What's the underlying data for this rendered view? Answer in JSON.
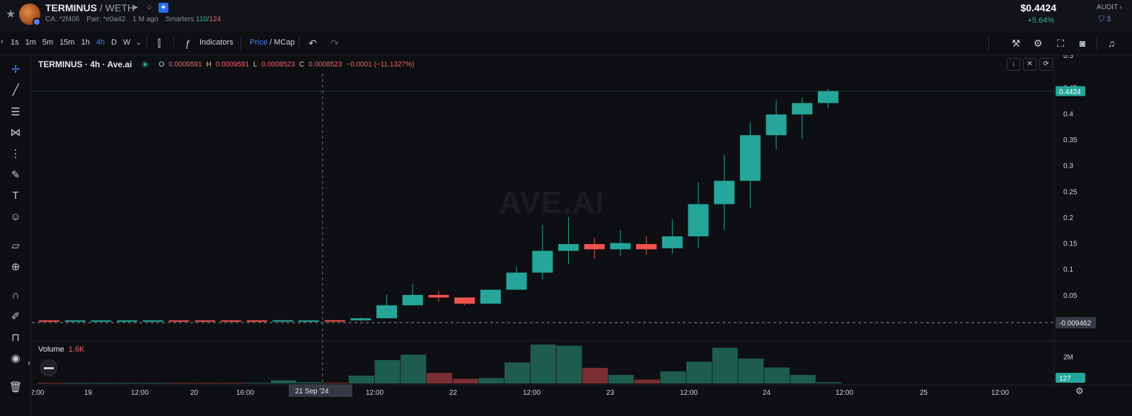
{
  "header": {
    "token_name": "TERMINUS",
    "pair_suffix": " / WETH",
    "ca": "CA: *2f406",
    "pair": "Pair: *e0a42",
    "age": "1 M ago",
    "smarters_label": "Smarters",
    "smarters_good": "110",
    "smarters_total": "124",
    "price": "$0.4424",
    "change": "+5.64%",
    "audit_label": "AUDIT",
    "audit_count": "3"
  },
  "toolbar": {
    "intervals": [
      "1s",
      "1m",
      "5m",
      "15m",
      "1h",
      "4h",
      "D",
      "W"
    ],
    "active_interval": "4h",
    "indicators": "Indicators",
    "price_label": "Price",
    "mcap_label": "MCap"
  },
  "legend": {
    "title": "TERMINUS · 4h · Ave.ai",
    "o_key": "O",
    "o": "0.0009591",
    "h_key": "H",
    "h": "0.0009591",
    "l_key": "L",
    "l": "0.0008523",
    "c_key": "C",
    "c": "0.0008523",
    "chg": "−0.0001 (−11.1327%)"
  },
  "watermark": "AVE.AI",
  "volume": {
    "label": "Volume",
    "value": "1.6K",
    "axis_label": "2M",
    "last_tag": "127"
  },
  "crosshair_date": "21 Sep '24",
  "last_price_tag": "0.4424",
  "cursor_price_tag": "-0.009462",
  "y_top_partial": "0.5",
  "chart_data": {
    "type": "candlestick",
    "y_ticks": [
      0.45,
      0.4,
      0.35,
      0.3,
      0.25,
      0.2,
      0.15,
      0.1,
      0.05
    ],
    "x_ticks": [
      "2:00",
      "19",
      "12:00",
      "20",
      "16:00",
      "04:00",
      "12:00",
      "22",
      "12:00",
      "23",
      "12:00",
      "24",
      "12:00",
      "25",
      "12:00"
    ],
    "ylim": [
      -0.012,
      0.5
    ],
    "candles": [
      {
        "o": 0.0009,
        "h": 0.001,
        "l": 0.0008,
        "c": 0.0008
      },
      {
        "o": 0.0009,
        "h": 0.001,
        "l": 0.0009,
        "c": 0.001
      },
      {
        "o": 0.0009,
        "h": 0.001,
        "l": 0.0009,
        "c": 0.001
      },
      {
        "o": 0.0009,
        "h": 0.001,
        "l": 0.0009,
        "c": 0.001
      },
      {
        "o": 0.0009,
        "h": 0.001,
        "l": 0.0009,
        "c": 0.001
      },
      {
        "o": 0.001,
        "h": 0.001,
        "l": 0.0009,
        "c": 0.0009
      },
      {
        "o": 0.001,
        "h": 0.001,
        "l": 0.0009,
        "c": 0.0009
      },
      {
        "o": 0.001,
        "h": 0.001,
        "l": 0.0009,
        "c": 0.0009
      },
      {
        "o": 0.0009,
        "h": 0.001,
        "l": 0.0008,
        "c": 0.0008
      },
      {
        "o": 0.0009,
        "h": 0.0015,
        "l": 0.0008,
        "c": 0.0012
      },
      {
        "o": 0.0009,
        "h": 0.0012,
        "l": 0.0008,
        "c": 0.0009
      },
      {
        "o": 0.0012,
        "h": 0.0012,
        "l": 0.0008,
        "c": 0.0009
      },
      {
        "o": 0.001,
        "h": 0.006,
        "l": 0.0,
        "c": 0.005
      },
      {
        "o": 0.005,
        "h": 0.05,
        "l": 0.005,
        "c": 0.03
      },
      {
        "o": 0.03,
        "h": 0.072,
        "l": 0.03,
        "c": 0.05
      },
      {
        "o": 0.05,
        "h": 0.058,
        "l": 0.037,
        "c": 0.045
      },
      {
        "o": 0.045,
        "h": 0.045,
        "l": 0.03,
        "c": 0.033
      },
      {
        "o": 0.033,
        "h": 0.06,
        "l": 0.033,
        "c": 0.06
      },
      {
        "o": 0.06,
        "h": 0.105,
        "l": 0.06,
        "c": 0.093
      },
      {
        "o": 0.093,
        "h": 0.185,
        "l": 0.08,
        "c": 0.135
      },
      {
        "o": 0.135,
        "h": 0.2,
        "l": 0.11,
        "c": 0.148
      },
      {
        "o": 0.148,
        "h": 0.16,
        "l": 0.12,
        "c": 0.138
      },
      {
        "o": 0.138,
        "h": 0.175,
        "l": 0.125,
        "c": 0.15
      },
      {
        "o": 0.148,
        "h": 0.163,
        "l": 0.128,
        "c": 0.138
      },
      {
        "o": 0.14,
        "h": 0.196,
        "l": 0.13,
        "c": 0.163
      },
      {
        "o": 0.163,
        "h": 0.267,
        "l": 0.14,
        "c": 0.225
      },
      {
        "o": 0.225,
        "h": 0.32,
        "l": 0.175,
        "c": 0.27
      },
      {
        "o": 0.27,
        "h": 0.383,
        "l": 0.218,
        "c": 0.358
      },
      {
        "o": 0.358,
        "h": 0.425,
        "l": 0.33,
        "c": 0.398
      },
      {
        "o": 0.398,
        "h": 0.43,
        "l": 0.35,
        "c": 0.42
      },
      {
        "o": 0.42,
        "h": 0.447,
        "l": 0.41,
        "c": 0.443
      }
    ],
    "volume_up_color": "#1e5c4d",
    "volume_down_color": "#7a2e33",
    "up_color": "#26a69a",
    "down_color": "#ef5350",
    "volumes": [
      {
        "v": 0.01,
        "up": false
      },
      {
        "v": 0.01,
        "up": true
      },
      {
        "v": 0.01,
        "up": true
      },
      {
        "v": 0.01,
        "up": true
      },
      {
        "v": 0.01,
        "up": true
      },
      {
        "v": 0.01,
        "up": false
      },
      {
        "v": 0.01,
        "up": false
      },
      {
        "v": 0.01,
        "up": false
      },
      {
        "v": 0.02,
        "up": true
      },
      {
        "v": 0.08,
        "up": true
      },
      {
        "v": 0.03,
        "up": true
      },
      {
        "v": 0.02,
        "up": false
      },
      {
        "v": 0.2,
        "up": true
      },
      {
        "v": 0.6,
        "up": true
      },
      {
        "v": 0.74,
        "up": true
      },
      {
        "v": 0.27,
        "up": false
      },
      {
        "v": 0.12,
        "up": false
      },
      {
        "v": 0.14,
        "up": true
      },
      {
        "v": 0.54,
        "up": true
      },
      {
        "v": 1.0,
        "up": true
      },
      {
        "v": 0.97,
        "up": true
      },
      {
        "v": 0.4,
        "up": false
      },
      {
        "v": 0.22,
        "up": true
      },
      {
        "v": 0.1,
        "up": false
      },
      {
        "v": 0.31,
        "up": true
      },
      {
        "v": 0.56,
        "up": true
      },
      {
        "v": 0.92,
        "up": true
      },
      {
        "v": 0.64,
        "up": true
      },
      {
        "v": 0.41,
        "up": true
      },
      {
        "v": 0.22,
        "up": true
      },
      {
        "v": 0.03,
        "up": true
      }
    ]
  }
}
